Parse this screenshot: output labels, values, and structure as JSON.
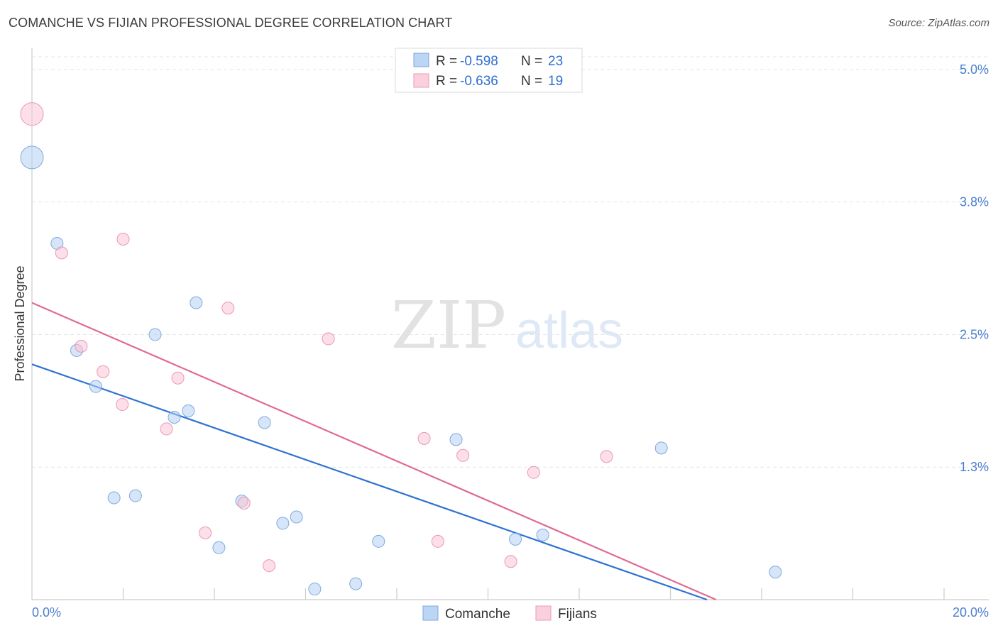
{
  "title": "COMANCHE VS FIJIAN PROFESSIONAL DEGREE CORRELATION CHART",
  "source": "Source: ZipAtlas.com",
  "watermark": {
    "zip": "ZIP",
    "atlas": "atlas"
  },
  "chart_data": {
    "type": "scatter",
    "ylabel": "Professional Degree",
    "xlabel": "",
    "xlim": [
      0,
      20
    ],
    "ylim": [
      0,
      5.2
    ],
    "x_tick_labels": [
      "0.0%",
      "20.0%"
    ],
    "y_ticks": [
      {
        "value": 1.25,
        "label": "1.3%"
      },
      {
        "value": 2.5,
        "label": "2.5%"
      },
      {
        "value": 3.75,
        "label": "3.8%"
      },
      {
        "value": 5.0,
        "label": "5.0%"
      }
    ],
    "legend": [
      {
        "name": "Comanche",
        "r_label": "R =",
        "r_value": "-0.598",
        "n_label": "N =",
        "n_value": "23",
        "color": "#a8c8f0",
        "stroke": "#6f9fdc"
      },
      {
        "name": "Fijians",
        "r_label": "R =",
        "r_value": "-0.636",
        "n_label": "N =",
        "n_value": "19",
        "color": "#f8bcd0",
        "stroke": "#e88aa8"
      }
    ],
    "series": [
      {
        "name": "Comanche",
        "line_color": "#2f72d2",
        "trend": {
          "x0": 0,
          "y0": 2.22,
          "x1": 14.8,
          "y1": 0
        },
        "points": [
          {
            "x": 0.0,
            "y": 4.17,
            "big": true
          },
          {
            "x": 0.55,
            "y": 3.36
          },
          {
            "x": 0.98,
            "y": 2.35
          },
          {
            "x": 1.4,
            "y": 2.01
          },
          {
            "x": 1.8,
            "y": 0.96
          },
          {
            "x": 2.27,
            "y": 0.98
          },
          {
            "x": 2.7,
            "y": 2.5
          },
          {
            "x": 3.12,
            "y": 1.72
          },
          {
            "x": 3.43,
            "y": 1.78
          },
          {
            "x": 3.6,
            "y": 2.8
          },
          {
            "x": 4.1,
            "y": 0.49
          },
          {
            "x": 4.6,
            "y": 0.93
          },
          {
            "x": 5.1,
            "y": 1.67
          },
          {
            "x": 5.5,
            "y": 0.72
          },
          {
            "x": 5.8,
            "y": 0.78
          },
          {
            "x": 6.2,
            "y": 0.1
          },
          {
            "x": 7.1,
            "y": 0.15
          },
          {
            "x": 7.6,
            "y": 0.55
          },
          {
            "x": 9.3,
            "y": 1.51
          },
          {
            "x": 10.6,
            "y": 0.57
          },
          {
            "x": 11.2,
            "y": 0.61
          },
          {
            "x": 13.8,
            "y": 1.43
          },
          {
            "x": 16.3,
            "y": 0.26
          }
        ]
      },
      {
        "name": "Fijians",
        "line_color": "#e06a94",
        "trend": {
          "x0": 0,
          "y0": 2.8,
          "x1": 15.0,
          "y1": 0
        },
        "points": [
          {
            "x": 0.0,
            "y": 4.58,
            "big": true
          },
          {
            "x": 0.65,
            "y": 3.27
          },
          {
            "x": 1.08,
            "y": 2.39
          },
          {
            "x": 1.56,
            "y": 2.15
          },
          {
            "x": 1.98,
            "y": 1.84
          },
          {
            "x": 2.0,
            "y": 3.4
          },
          {
            "x": 2.95,
            "y": 1.61
          },
          {
            "x": 3.2,
            "y": 2.09
          },
          {
            "x": 3.8,
            "y": 0.63
          },
          {
            "x": 4.3,
            "y": 2.75
          },
          {
            "x": 4.65,
            "y": 0.91
          },
          {
            "x": 5.2,
            "y": 0.32
          },
          {
            "x": 6.5,
            "y": 2.46
          },
          {
            "x": 8.6,
            "y": 1.52
          },
          {
            "x": 8.9,
            "y": 0.55
          },
          {
            "x": 9.45,
            "y": 1.36
          },
          {
            "x": 10.5,
            "y": 0.36
          },
          {
            "x": 11.0,
            "y": 1.2
          },
          {
            "x": 12.6,
            "y": 1.35
          }
        ]
      }
    ]
  }
}
